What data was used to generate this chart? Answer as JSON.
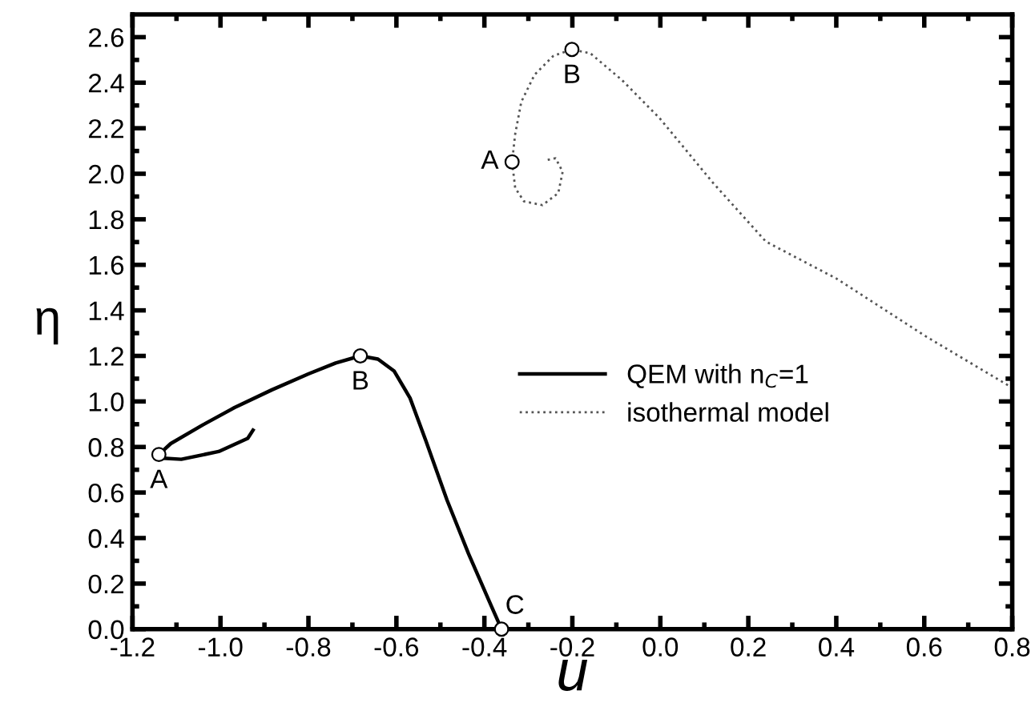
{
  "chart_data": {
    "type": "line",
    "xlabel": "u",
    "ylabel": "η",
    "xlim": [
      -1.2,
      0.8
    ],
    "ylim": [
      0,
      2.7
    ],
    "xticks": [
      -1.2,
      {
        "value": -1.1,
        "label": null
      },
      {
        "value": -1,
        "label": "-1.0"
      },
      {
        "value": -0.9,
        "label": null
      },
      -0.8,
      {
        "value": -0.7,
        "label": null
      },
      -0.6,
      {
        "value": -0.5,
        "label": null
      },
      -0.4,
      {
        "value": -0.3,
        "label": null
      },
      -0.2,
      {
        "value": -0.1,
        "label": null
      },
      {
        "value": 0,
        "label": "0.0"
      },
      {
        "value": 0.1,
        "label": null
      },
      0.2,
      {
        "value": 0.3,
        "label": null
      },
      0.4,
      {
        "value": 0.5,
        "label": null
      },
      0.6,
      {
        "value": 0.7,
        "label": null
      },
      0.8
    ],
    "yticks": [
      {
        "value": 0,
        "label": "0.0"
      },
      {
        "value": 0.1,
        "label": null
      },
      0.2,
      {
        "value": 0.3,
        "label": null
      },
      0.4,
      {
        "value": 0.5,
        "label": null
      },
      0.6,
      {
        "value": 0.7,
        "label": null
      },
      0.8,
      {
        "value": 0.9,
        "label": null
      },
      {
        "value": 1,
        "label": "1.0"
      },
      {
        "value": 1.1,
        "label": null
      },
      1.2,
      {
        "value": 1.3,
        "label": null
      },
      1.4,
      {
        "value": 1.5,
        "label": null
      },
      1.6,
      {
        "value": 1.7,
        "label": null
      },
      1.8,
      {
        "value": 1.9,
        "label": null
      },
      {
        "value": 2,
        "label": "2.0"
      },
      {
        "value": 2.1,
        "label": null
      },
      2.2,
      {
        "value": 2.3,
        "label": null
      },
      2.4,
      {
        "value": 2.5,
        "label": null
      },
      2.6
    ],
    "grid": false,
    "legend": "right",
    "series": [
      {
        "name": "QEM with n$_{C}$=1",
        "color": "#000000",
        "line_style": "solid",
        "x": [
          -0.926,
          -0.938,
          -1.004,
          -1.089,
          -1.131,
          -1.14,
          -1.113,
          -1.04,
          -0.968,
          -0.883,
          -0.799,
          -0.738,
          -0.682,
          -0.642,
          -0.605,
          -0.569,
          -0.533,
          -0.485,
          -0.436,
          -0.388,
          -0.361
        ],
        "values": [
          0.874,
          0.838,
          0.78,
          0.746,
          0.751,
          0.767,
          0.815,
          0.897,
          0.973,
          1.051,
          1.122,
          1.169,
          1.2,
          1.186,
          1.133,
          1.015,
          0.827,
          0.567,
          0.331,
          0.118,
          0.0
        ]
      },
      {
        "name": "isothermal model",
        "color": "#555555",
        "line_style": "dotted",
        "x": [
          -0.256,
          -0.238,
          -0.222,
          -0.232,
          -0.268,
          -0.31,
          -0.33,
          -0.337,
          -0.33,
          -0.316,
          -0.286,
          -0.243,
          -0.201,
          -0.159,
          -0.087,
          -0.002,
          0.119,
          0.24,
          0.4,
          0.6,
          0.8
        ],
        "values": [
          2.061,
          2.068,
          2.009,
          1.915,
          1.862,
          1.879,
          1.938,
          2.052,
          2.174,
          2.316,
          2.435,
          2.518,
          2.546,
          2.529,
          2.411,
          2.245,
          1.962,
          1.702,
          1.54,
          1.29,
          1.06
        ]
      }
    ],
    "annotations": [
      {
        "text": "A",
        "x": -1.14,
        "y": 0.767
      },
      {
        "text": "B",
        "x": -0.682,
        "y": 1.2
      },
      {
        "text": "C",
        "x": -0.361,
        "y": 0.0
      },
      {
        "text": "A",
        "x": -0.337,
        "y": 2.052
      },
      {
        "text": "B",
        "x": -0.201,
        "y": 2.546
      }
    ]
  }
}
